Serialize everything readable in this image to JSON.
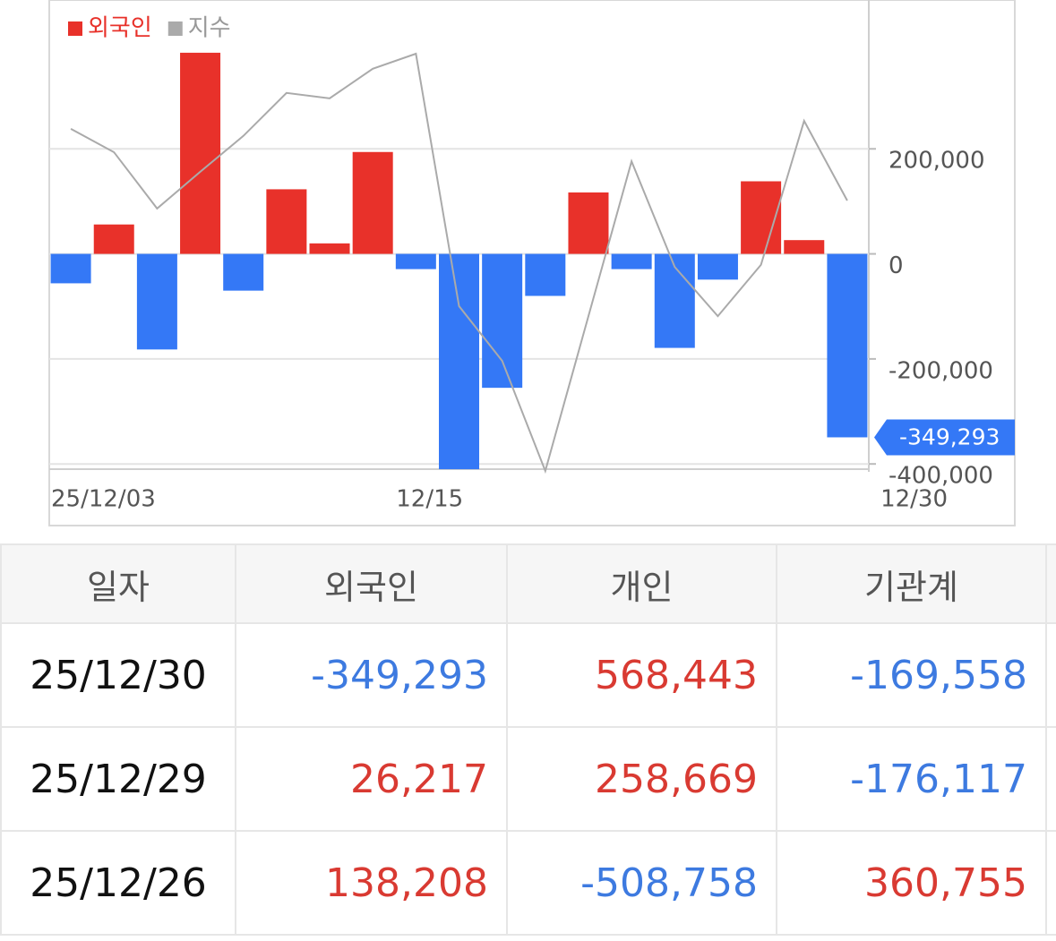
{
  "chart_data": {
    "type": "bar",
    "categories": [
      "25/12/03",
      null,
      null,
      null,
      null,
      null,
      null,
      null,
      "12/15",
      null,
      null,
      null,
      null,
      null,
      null,
      null,
      null,
      null,
      "12/30"
    ],
    "series": [
      {
        "name": "외국인",
        "color": "#e8312a",
        "negative_color": "#3478f6",
        "values": [
          -56000,
          56000,
          -182000,
          383000,
          -70000,
          123000,
          20000,
          194000,
          -29000,
          -410000,
          -255000,
          -80000,
          117000,
          -29000,
          -179000,
          -49000,
          138208,
          26217,
          -349293
        ]
      },
      {
        "name": "지수",
        "color": "#aaaaaa",
        "type": "line",
        "axis": "y2",
        "values": [
          82,
          76.4,
          62.9,
          71.7,
          80.3,
          90.6,
          89.3,
          96.4,
          100,
          39.5,
          26.4,
          0,
          37.1,
          74.2,
          48.9,
          37.1,
          49.4,
          83.9,
          64.8
        ]
      }
    ],
    "ylim": [
      -415000,
      480000
    ],
    "yticks": [
      {
        "value": 200000,
        "label": "200,000"
      },
      0,
      {
        "value": -200000,
        "label": "-200,000"
      },
      {
        "value": -400000,
        "label": "-400,000"
      }
    ],
    "y2lim": [
      0,
      100
    ],
    "grid": true,
    "legend": "top-left",
    "last_value_label": "-349,293"
  },
  "table": {
    "headers": [
      "일자",
      "외국인",
      "개인",
      "기관계"
    ],
    "rows": [
      [
        "25/12/30",
        "-349,293",
        "568,443",
        "-169,558"
      ],
      [
        "25/12/29",
        "26,217",
        "258,669",
        "-176,117"
      ],
      [
        "25/12/26",
        "138,208",
        "-508,758",
        "360,755"
      ]
    ]
  }
}
